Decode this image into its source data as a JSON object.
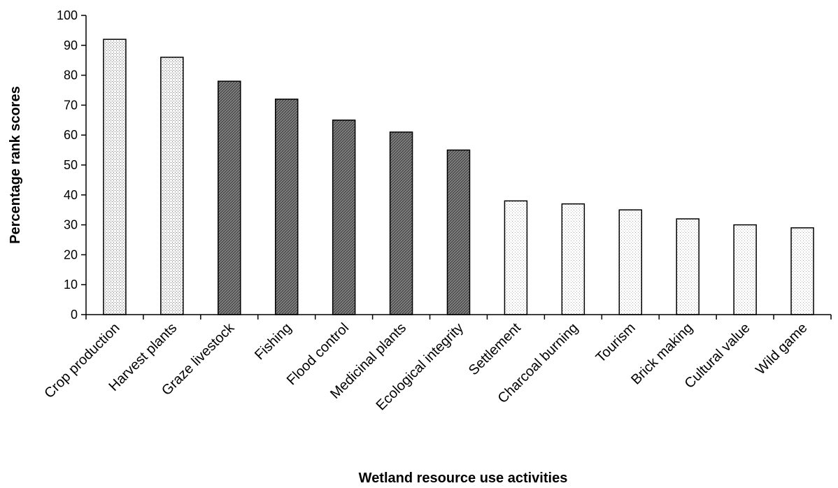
{
  "chart_data": {
    "type": "bar",
    "title": "",
    "xlabel": "Wetland resource use activities",
    "ylabel": "Percentage  rank scores",
    "ylim": [
      0,
      100
    ],
    "yticks": [
      0,
      10,
      20,
      30,
      40,
      50,
      60,
      70,
      80,
      90,
      100
    ],
    "grid": false,
    "legend": "none",
    "categories": [
      "Crop production",
      "Harvest plants",
      "Graze livestock",
      "Fishing",
      "Flood control",
      "Medicinal plants",
      "Ecological integrity",
      "Settlement",
      "Charcoal burning",
      "Tourism",
      "Brick making",
      "Cultural value",
      "Wild game"
    ],
    "values": [
      92,
      86,
      78,
      72,
      65,
      61,
      55,
      38,
      37,
      35,
      32,
      30,
      29
    ],
    "bar_fills": [
      "light-stipple",
      "light-stipple",
      "dark-crosshatch",
      "dark-crosshatch",
      "dark-crosshatch",
      "dark-crosshatch",
      "dark-crosshatch",
      "fine-dots",
      "fine-dots",
      "fine-dots",
      "fine-dots",
      "fine-dots",
      "fine-dots"
    ]
  }
}
